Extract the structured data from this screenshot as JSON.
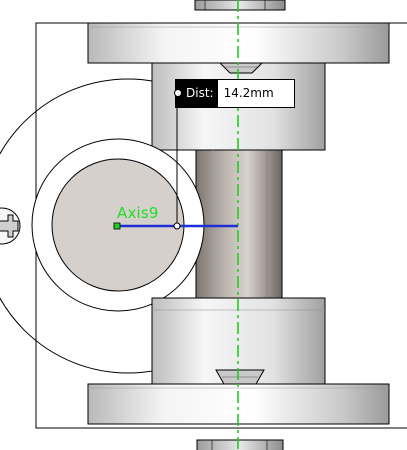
{
  "measurement": {
    "key_label": "Dist:",
    "value": "14.2mm"
  },
  "axis": {
    "label": "Axis9"
  },
  "colors": {
    "centerline": "#22cc22",
    "dimension_line": "#1f2fd6",
    "axis_label": "#22dd22",
    "part_light": "#f2f2f2",
    "part_shade": "#a8a8a8",
    "hole_fill": "#d6d0cc"
  }
}
